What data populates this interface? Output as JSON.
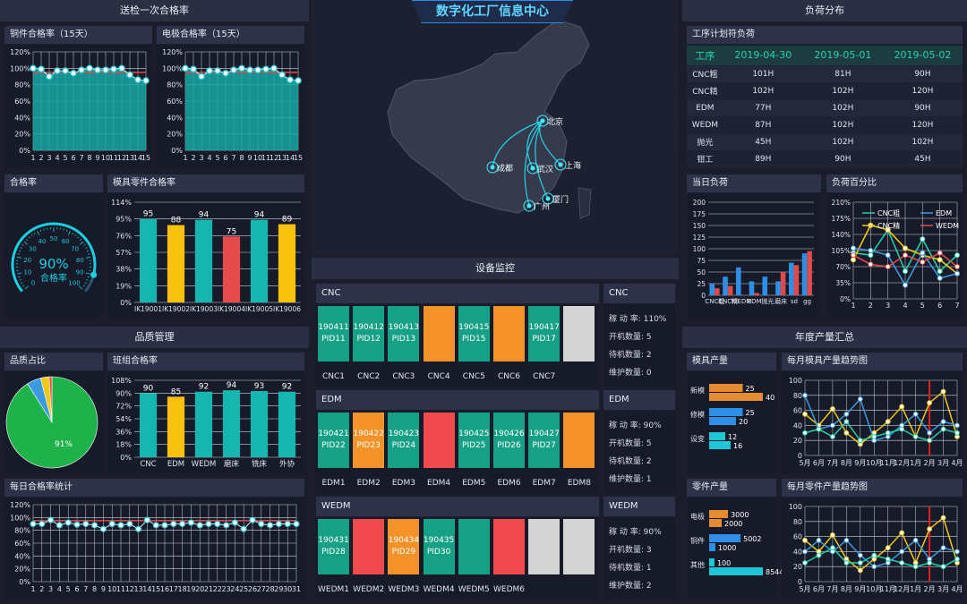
{
  "header": {
    "title": "数字化工厂信息中心"
  },
  "panels": {
    "inspection": "送检一次合格率",
    "quality": "品质管理",
    "equipment": "设备监控",
    "load": "负荷分布",
    "annual": "年度产量汇总"
  },
  "subtitles": {
    "copper": "铜件合格率（15天）",
    "electrode": "电极合格率（15天）",
    "pass_rate": "合格率",
    "mold_parts": "模具零件合格率",
    "quality_share": "品质占比",
    "team_pass": "班组合格率",
    "daily": "每日合格率统计",
    "schedule": "工序计划符负荷",
    "daily_load": "当日负荷",
    "load_pct": "负荷百分比",
    "mold_output": "模具产量",
    "mold_trend": "每月模具产量趋势图",
    "part_output": "零件产量",
    "part_trend": "每月零件产量趋势图"
  },
  "gauge": {
    "value_label": "90%",
    "label": "合格率",
    "ticks": [
      "0",
      "10",
      "20",
      "30",
      "40",
      "50",
      "60",
      "70",
      "80",
      "90",
      "100"
    ],
    "value": 90
  },
  "copper_chart": {
    "type": "bar",
    "y_ticks": [
      "0%",
      "20%",
      "40%",
      "60%",
      "80%",
      "100%",
      "120%"
    ],
    "categories": [
      "1",
      "2",
      "3",
      "4",
      "5",
      "6",
      "7",
      "8",
      "9",
      "10",
      "11",
      "12",
      "13",
      "14",
      "15"
    ],
    "line": [
      100,
      99,
      90,
      97,
      97,
      94,
      98,
      100,
      98,
      98,
      99,
      100,
      92,
      86,
      85
    ]
  },
  "electrode_chart": {
    "type": "bar",
    "y_ticks": [
      "0%",
      "20%",
      "40%",
      "60%",
      "80%",
      "100%",
      "120%"
    ],
    "categories": [
      "1",
      "2",
      "3",
      "4",
      "5",
      "6",
      "7",
      "8",
      "9",
      "10",
      "11",
      "12",
      "13",
      "14",
      "15"
    ],
    "line": [
      100,
      99,
      90,
      97,
      97,
      94,
      98,
      100,
      98,
      98,
      99,
      100,
      92,
      86,
      85
    ]
  },
  "mold_chart": {
    "type": "bar",
    "y_ticks": [
      "0%",
      "19%",
      "38%",
      "57%",
      "76%",
      "95%",
      "114%"
    ],
    "categories": [
      "IK19001",
      "IK19002",
      "IK19003",
      "IK19004",
      "IK19005",
      "IK19006"
    ],
    "values": [
      95,
      88,
      94,
      75,
      94,
      89
    ],
    "colors": [
      "#16b6b0",
      "#f7c10e",
      "#16b6b0",
      "#e54b4b",
      "#16b6b0",
      "#f7c10e"
    ]
  },
  "team_chart": {
    "type": "bar",
    "y_ticks": [
      "0%",
      "18%",
      "36%",
      "54%",
      "72%",
      "90%",
      "108%"
    ],
    "categories": [
      "CNC",
      "EDM",
      "WEDM",
      "磨床",
      "铣床",
      "外协"
    ],
    "values": [
      90,
      85,
      92,
      94,
      93,
      92
    ],
    "colors": [
      "#16b6b0",
      "#f7c10e",
      "#16b6b0",
      "#16b6b0",
      "#16b6b0",
      "#16b6b0"
    ]
  },
  "pie": {
    "label": "91%",
    "slices": [
      91,
      5,
      3,
      1
    ],
    "colors": [
      "#1fb24a",
      "#3c9be0",
      "#f2c811",
      "#e0513b"
    ]
  },
  "daily_chart": {
    "y_ticks": [
      "0%",
      "20%",
      "40%",
      "60%",
      "80%",
      "100%",
      "120%"
    ],
    "categories": [
      "1",
      "2",
      "3",
      "4",
      "5",
      "6",
      "7",
      "8",
      "9",
      "10",
      "11",
      "12",
      "13",
      "14",
      "15",
      "16",
      "17",
      "18",
      "19",
      "20",
      "21",
      "22",
      "23",
      "24",
      "25",
      "26",
      "27",
      "28",
      "29",
      "30",
      "31"
    ],
    "line": [
      90,
      90,
      96,
      88,
      92,
      89,
      90,
      88,
      82,
      90,
      88,
      90,
      82,
      96,
      88,
      88,
      90,
      90,
      92,
      88,
      90,
      90,
      88,
      92,
      82,
      96,
      90,
      88,
      90,
      90,
      90
    ]
  },
  "map": {
    "cities": [
      "北京",
      "成都",
      "武汉",
      "上海",
      "厦门",
      "广州"
    ]
  },
  "cnc": {
    "title": "CNC",
    "blocks": [
      {
        "label": "CNC1",
        "text": "190411\nPID11",
        "color": "#16a085"
      },
      {
        "label": "CNC2",
        "text": "190412\nPID12",
        "color": "#16a085"
      },
      {
        "label": "CNC3",
        "text": "190413\nPID13",
        "color": "#16a085"
      },
      {
        "label": "CNC4",
        "text": "",
        "color": "#f4922a"
      },
      {
        "label": "CNC5",
        "text": "190415\nPID15",
        "color": "#16a085"
      },
      {
        "label": "CNC6",
        "text": "",
        "color": "#f4922a"
      },
      {
        "label": "CNC7",
        "text": "190417\nPID17",
        "color": "#16a085"
      },
      {
        "label": "",
        "text": "",
        "color": "#d4d4d4"
      }
    ],
    "side_title": "CNC",
    "stats": [
      "稼 动 率: 110%",
      "开机数量: 5",
      "待机数量: 2",
      "维护数量: 0"
    ]
  },
  "edm": {
    "title": "EDM",
    "blocks": [
      {
        "label": "EDM1",
        "text": "190421\nPID22",
        "color": "#16a085"
      },
      {
        "label": "EDM2",
        "text": "190422\nPID23",
        "color": "#f4922a"
      },
      {
        "label": "EDM3",
        "text": "190423\nPID24",
        "color": "#16a085"
      },
      {
        "label": "EDM4",
        "text": "",
        "color": "#f04a4f"
      },
      {
        "label": "EDM5",
        "text": "190425\nPID25",
        "color": "#16a085"
      },
      {
        "label": "EDM6",
        "text": "190426\nPID26",
        "color": "#16a085"
      },
      {
        "label": "EDM7",
        "text": "190427\nPID27",
        "color": "#16a085"
      },
      {
        "label": "EDM8",
        "text": "",
        "color": "#f4922a"
      }
    ],
    "side_title": "EDM",
    "stats": [
      "稼 动 率: 90%",
      "开机数量: 5",
      "待机数量: 2",
      "维护数量: 1"
    ]
  },
  "wedm": {
    "title": "WEDM",
    "blocks": [
      {
        "label": "WEDM1",
        "text": "190431\nPID28",
        "color": "#16a085"
      },
      {
        "label": "WEDM2",
        "text": "",
        "color": "#f04a4f"
      },
      {
        "label": "WEDM3",
        "text": "190434\nPID29",
        "color": "#f4922a"
      },
      {
        "label": "WEDM4",
        "text": "190435\nPID30",
        "color": "#16a085"
      },
      {
        "label": "WEDM5",
        "text": "",
        "color": "#16a085"
      },
      {
        "label": "WEDM6",
        "text": "",
        "color": "#f04a4f"
      },
      {
        "label": "",
        "text": "",
        "color": "#d4d4d4"
      },
      {
        "label": "",
        "text": "",
        "color": "#d4d4d4"
      }
    ],
    "side_title": "WEDM",
    "stats": [
      "稼 动 率: 90%",
      "开机数量: 3",
      "待机数量: 1",
      "维护数量: 2"
    ]
  },
  "schedule_table": {
    "headers": [
      "工序",
      "2019-04-30",
      "2019-05-01",
      "2019-05-02"
    ],
    "rows": [
      [
        "CNC粗",
        "101H",
        "81H",
        "90H"
      ],
      [
        "CNC精",
        "102H",
        "102H",
        "120H"
      ],
      [
        "EDM",
        "77H",
        "102H",
        "90H"
      ],
      [
        "WEDM",
        "87H",
        "102H",
        "120H"
      ],
      [
        "抛光",
        "45H",
        "102H",
        "102H"
      ],
      [
        "钳工",
        "89H",
        "90H",
        "45H"
      ]
    ]
  },
  "daily_load_chart": {
    "type": "bar",
    "y_ticks": [
      "0",
      "25",
      "50",
      "75",
      "100",
      "125",
      "150",
      "175",
      "200"
    ],
    "categories": [
      "CNC粗",
      "CNC精",
      "WEDM",
      "EDM",
      "抛光",
      "磨床",
      "sd",
      "gg"
    ],
    "series": [
      {
        "values": [
          25,
          40,
          60,
          30,
          40,
          30,
          70,
          90
        ],
        "color": "#2e8fe6"
      },
      {
        "values": [
          15,
          20,
          0,
          5,
          0,
          50,
          65,
          95
        ],
        "color": "#e04a4a"
      }
    ]
  },
  "load_pct_chart": {
    "type": "line",
    "y_ticks": [
      "0%",
      "35%",
      "70%",
      "105%",
      "140%",
      "175%",
      "210%"
    ],
    "categories": [
      "1",
      "2",
      "3",
      "4",
      "5",
      "6",
      "7"
    ],
    "legend": [
      "CNC粗",
      "CNC精",
      "EDM",
      "WEDM"
    ],
    "series": [
      {
        "values": [
          100,
          95,
          150,
          60,
          130,
          60,
          95
        ],
        "color": "#1fd1a8"
      },
      {
        "values": [
          85,
          160,
          150,
          110,
          95,
          85,
          55
        ],
        "color": "#f2c811"
      },
      {
        "values": [
          110,
          105,
          95,
          30,
          100,
          45,
          55
        ],
        "color": "#3c9be0"
      },
      {
        "values": [
          95,
          75,
          70,
          95,
          80,
          100,
          70
        ],
        "color": "#e04a4a"
      }
    ]
  },
  "mold_output": {
    "categories": [
      "新模",
      "修模",
      "设变"
    ],
    "series1": [
      25,
      25,
      12
    ],
    "series2": [
      40,
      20,
      16
    ],
    "colors": [
      "#e58c32",
      "#2e8fe6",
      "#1fc6d6"
    ]
  },
  "part_output": {
    "categories": [
      "电极",
      "铜件",
      "其他"
    ],
    "series1": [
      3000,
      5002,
      100
    ],
    "series2": [
      2000,
      1000,
      8544
    ],
    "colors": [
      "#e58c32",
      "#2e8fe6",
      "#1fc6d6"
    ]
  },
  "mold_trend": {
    "y_ticks": [
      "0",
      "20",
      "40",
      "60",
      "80",
      "100"
    ],
    "categories": [
      "5月",
      "6月",
      "7月",
      "8月",
      "9月",
      "10月",
      "11月",
      "12月",
      "1月",
      "2月",
      "3月",
      "4月"
    ],
    "series": [
      {
        "values": [
          55,
          40,
          62,
          30,
          15,
          30,
          45,
          65,
          25,
          70,
          85,
          25
        ],
        "color": "#f2c811"
      },
      {
        "values": [
          80,
          35,
          40,
          55,
          75,
          20,
          25,
          40,
          55,
          30,
          45,
          40
        ],
        "color": "#3c9be0"
      },
      {
        "values": [
          30,
          35,
          25,
          45,
          20,
          25,
          30,
          35,
          25,
          20,
          35,
          30
        ],
        "color": "#1fd1a8"
      }
    ]
  },
  "part_trend": {
    "y_ticks": [
      "0",
      "20",
      "40",
      "60",
      "80",
      "100"
    ],
    "categories": [
      "5月",
      "6月",
      "7月",
      "8月",
      "9月",
      "10月",
      "11月",
      "12月",
      "1月",
      "2月",
      "3月",
      "4月"
    ],
    "series": [
      {
        "values": [
          55,
          40,
          62,
          30,
          15,
          30,
          45,
          65,
          25,
          70,
          85,
          25
        ],
        "color": "#f2c811"
      },
      {
        "values": [
          40,
          55,
          40,
          55,
          35,
          20,
          25,
          40,
          55,
          30,
          45,
          40
        ],
        "color": "#3c9be0"
      },
      {
        "values": [
          25,
          35,
          45,
          25,
          25,
          35,
          30,
          25,
          20,
          25,
          20,
          30
        ],
        "color": "#1fd1a8"
      }
    ]
  }
}
